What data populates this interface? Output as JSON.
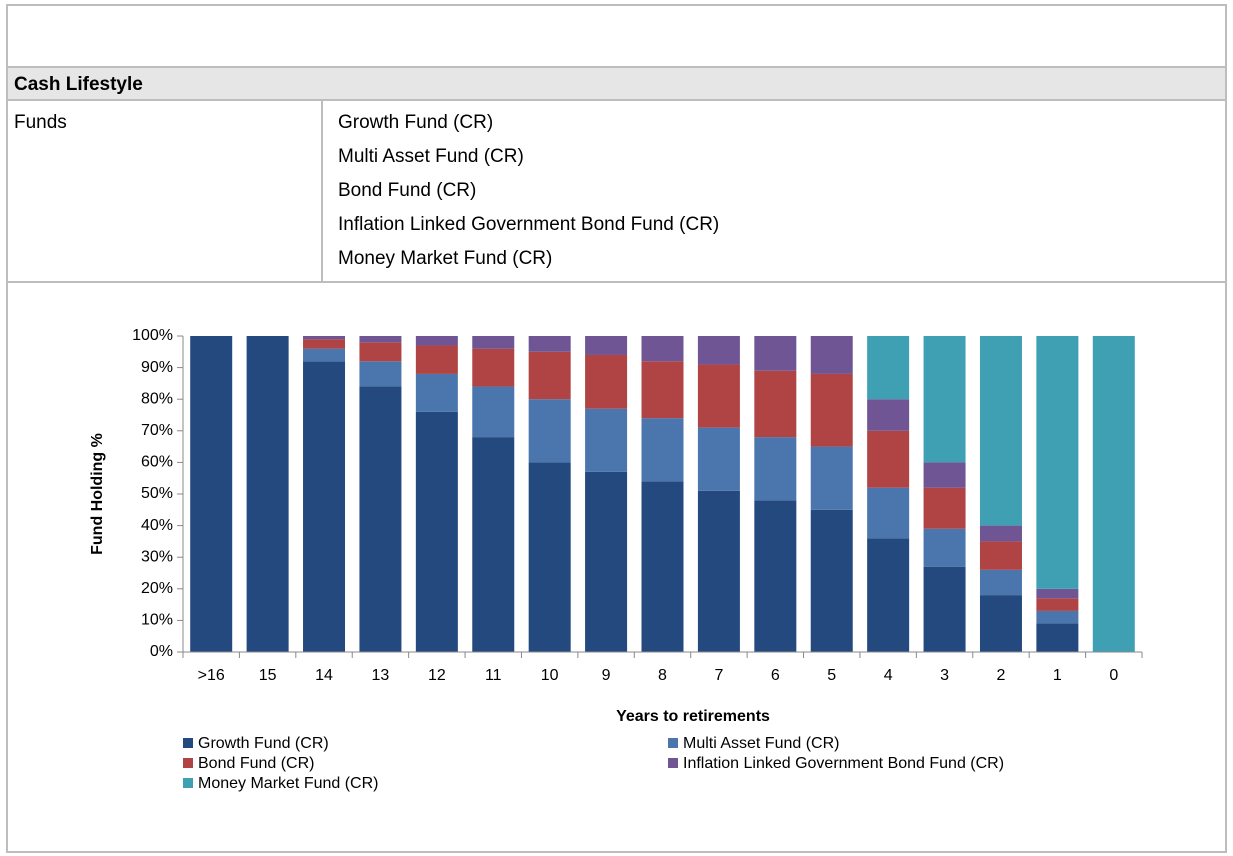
{
  "table": {
    "header": "Cash Lifestyle",
    "rows": [
      {
        "label": "Funds",
        "items": [
          "Growth Fund (CR)",
          "Multi Asset Fund (CR)",
          "Bond Fund (CR)",
          "Inflation Linked Government Bond Fund (CR)",
          "Money Market Fund (CR)"
        ]
      }
    ]
  },
  "chart_data": {
    "type": "stacked_bar",
    "x_label": "Years to retirements",
    "y_label": "Fund Holding %",
    "categories": [
      ">16",
      "15",
      "14",
      "13",
      "12",
      "11",
      "10",
      "9",
      "8",
      "7",
      "6",
      "5",
      "4",
      "3",
      "2",
      "1",
      "0"
    ],
    "series": [
      {
        "name": "Growth Fund (CR)",
        "color": "#23497e",
        "values": [
          100,
          100,
          92,
          84,
          76,
          68,
          60,
          57,
          54,
          51,
          48,
          45,
          36,
          27,
          18,
          9,
          0
        ]
      },
      {
        "name": "Multi Asset Fund (CR)",
        "color": "#4a76ad",
        "values": [
          0,
          0,
          4,
          8,
          12,
          16,
          20,
          20,
          20,
          20,
          20,
          20,
          16,
          12,
          8,
          4,
          0
        ]
      },
      {
        "name": "Bond Fund (CR)",
        "color": "#b04444",
        "values": [
          0,
          0,
          3,
          6,
          9,
          12,
          15,
          17,
          18,
          20,
          21,
          23,
          18,
          13,
          9,
          4,
          0
        ]
      },
      {
        "name": "Inflation Linked Government Bond Fund (CR)",
        "color": "#6f5593",
        "values": [
          0,
          0,
          1,
          2,
          3,
          4,
          5,
          6,
          8,
          9,
          11,
          12,
          10,
          8,
          5,
          3,
          0
        ]
      },
      {
        "name": "Money Market Fund (CR)",
        "color": "#3f9fb3",
        "values": [
          0,
          0,
          0,
          0,
          0,
          0,
          0,
          0,
          0,
          0,
          0,
          0,
          20,
          40,
          60,
          80,
          100
        ]
      }
    ],
    "ylim": [
      0,
      100
    ],
    "yticks": [
      {
        "value": 0,
        "label": "0%"
      },
      {
        "value": 10,
        "label": "10%"
      },
      {
        "value": 20,
        "label": "20%"
      },
      {
        "value": 30,
        "label": "30%"
      },
      {
        "value": 40,
        "label": "40%"
      },
      {
        "value": 50,
        "label": "50%"
      },
      {
        "value": 60,
        "label": "60%"
      },
      {
        "value": 70,
        "label": "70%"
      },
      {
        "value": 80,
        "label": "80%"
      },
      {
        "value": 90,
        "label": "90%"
      },
      {
        "value": 100,
        "label": "100%"
      }
    ]
  }
}
